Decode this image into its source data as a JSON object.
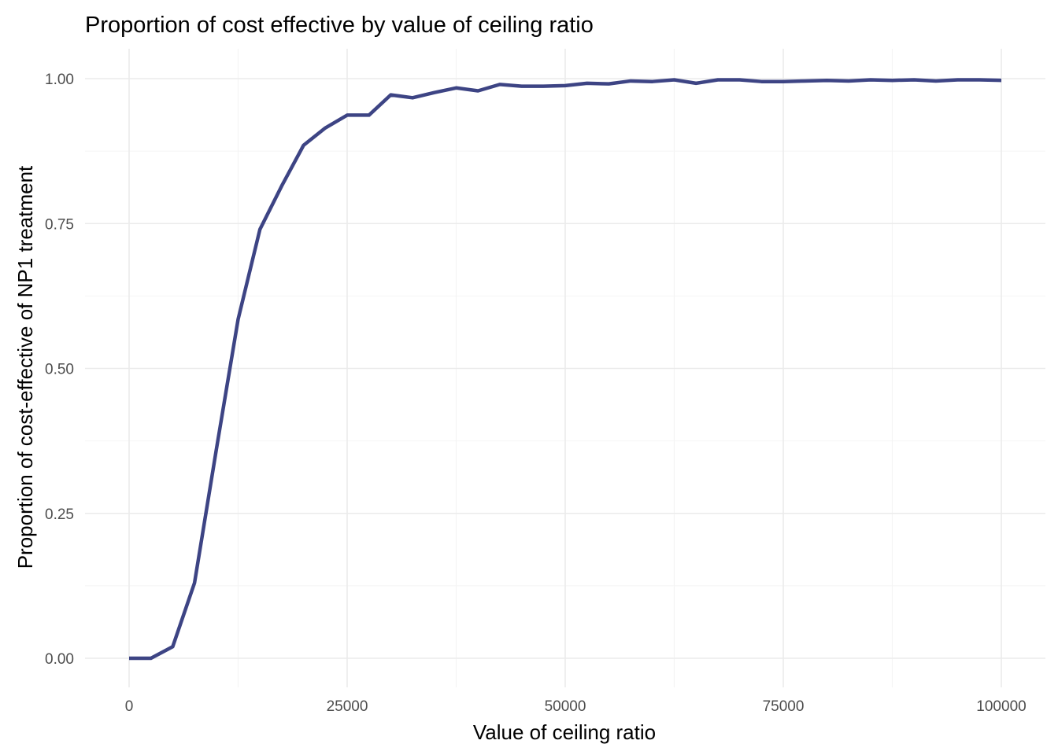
{
  "chart_data": {
    "type": "line",
    "title": "Proportion of cost effective by value of ceiling ratio",
    "xlabel": "Value of ceiling ratio",
    "ylabel": "Proportion of cost-effective of NP1 treatment",
    "xlim": [
      0,
      100000
    ],
    "ylim": [
      0,
      1
    ],
    "x_ticks": [
      0,
      25000,
      50000,
      75000,
      100000
    ],
    "x_tick_labels": [
      "0",
      "25000",
      "50000",
      "75000",
      "100000"
    ],
    "y_ticks": [
      0,
      0.25,
      0.5,
      0.75,
      1
    ],
    "y_tick_labels": [
      "0.00",
      "0.25",
      "0.50",
      "0.75",
      "1.00"
    ],
    "grid": true,
    "legend": "none",
    "line_color": "#3d4484",
    "series": [
      {
        "x": [
          0,
          2500,
          5000,
          7500,
          10000,
          12500,
          15000,
          17500,
          20000,
          22500,
          25000,
          27500,
          30000,
          32500,
          35000,
          37500,
          40000,
          42500,
          45000,
          47500,
          50000,
          52500,
          55000,
          57500,
          60000,
          62500,
          65000,
          67500,
          70000,
          72500,
          75000,
          77500,
          80000,
          82500,
          85000,
          87500,
          90000,
          92500,
          95000,
          97500,
          100000
        ],
        "values": [
          0,
          0,
          0.02,
          0.13,
          0.36,
          0.585,
          0.74,
          0.815,
          0.885,
          0.915,
          0.937,
          0.937,
          0.972,
          0.967,
          0.976,
          0.984,
          0.979,
          0.99,
          0.987,
          0.987,
          0.988,
          0.992,
          0.991,
          0.996,
          0.995,
          0.998,
          0.992,
          0.998,
          0.998,
          0.995,
          0.995,
          0.996,
          0.997,
          0.996,
          0.998,
          0.997,
          0.998,
          0.996,
          0.998,
          0.998,
          0.997
        ]
      }
    ]
  }
}
